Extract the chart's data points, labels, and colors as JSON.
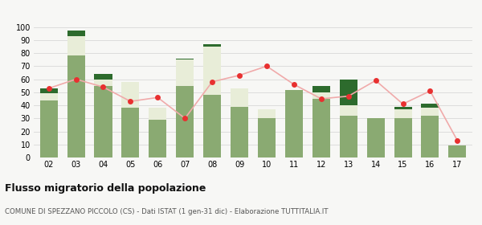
{
  "years": [
    "02",
    "03",
    "04",
    "05",
    "06",
    "07",
    "08",
    "09",
    "10",
    "11",
    "12",
    "13",
    "14",
    "15",
    "16",
    "17"
  ],
  "iscritti_altri_comuni": [
    44,
    78,
    55,
    38,
    29,
    55,
    48,
    39,
    30,
    52,
    45,
    32,
    30,
    30,
    32,
    9
  ],
  "iscritti_estero": [
    5,
    15,
    5,
    20,
    9,
    20,
    37,
    14,
    7,
    0,
    5,
    8,
    0,
    7,
    6,
    0
  ],
  "iscritti_altri": [
    4,
    4,
    4,
    0,
    0,
    1,
    2,
    0,
    0,
    0,
    5,
    20,
    0,
    2,
    3,
    0
  ],
  "cancellati": [
    53,
    60,
    54,
    43,
    46,
    30,
    58,
    63,
    70,
    56,
    45,
    47,
    59,
    41,
    51,
    13
  ],
  "color_altri_comuni": "#8aaa72",
  "color_estero": "#e8edd8",
  "color_altri": "#2d6b2d",
  "color_cancellati": "#e83030",
  "color_cancellati_line": "#f0aaaa",
  "title": "Flusso migratorio della popolazione",
  "subtitle": "COMUNE DI SPEZZANO PICCOLO (CS) - Dati ISTAT (1 gen-31 dic) - Elaborazione TUTTITALIA.IT",
  "ylim": [
    0,
    100
  ],
  "yticks": [
    0,
    10,
    20,
    30,
    40,
    50,
    60,
    70,
    80,
    90,
    100
  ],
  "bg_color": "#f7f7f5",
  "grid_color": "#d8d8d8"
}
